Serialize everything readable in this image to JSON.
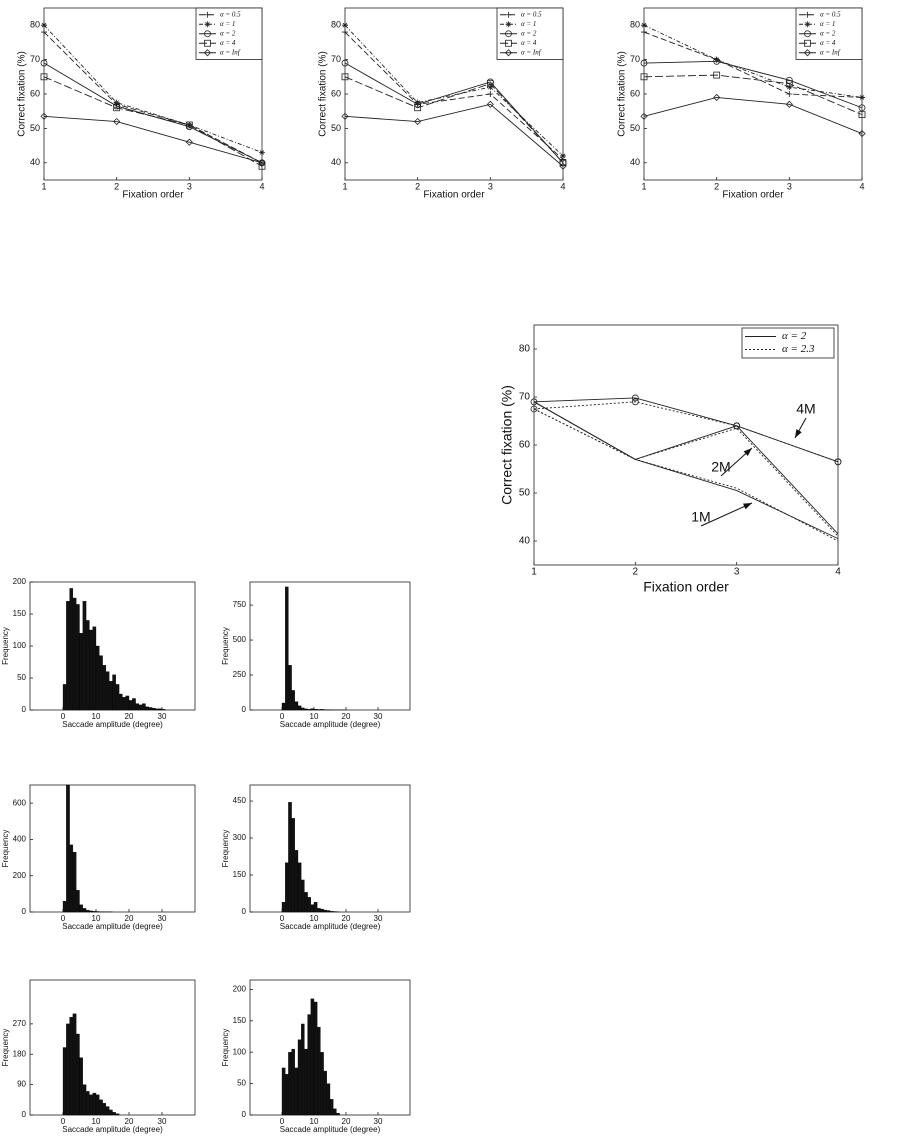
{
  "chart_data": [
    {
      "type": "line",
      "x": [
        1,
        2,
        3,
        4
      ],
      "xlim": [
        1,
        4
      ],
      "xticks": [
        1,
        2,
        3,
        4
      ],
      "ylim": [
        35,
        85
      ],
      "yticks": [
        40,
        50,
        60,
        70,
        80
      ],
      "xlabel": "Fixation order",
      "ylabel": "Correct fixation (%)",
      "legend": "upper right",
      "series": [
        {
          "name": "α = 0.5",
          "color": "#222",
          "dash": "6 3",
          "marker": "plus",
          "values": [
            78,
            57,
            51,
            40
          ]
        },
        {
          "name": "α = 1",
          "color": "#222",
          "dash": "4 2 1 2",
          "marker": "star",
          "values": [
            80,
            57.5,
            51,
            43
          ]
        },
        {
          "name": "α = 2",
          "color": "#222",
          "dash": "none",
          "marker": "circle",
          "values": [
            69,
            56.5,
            50.5,
            40
          ]
        },
        {
          "name": "α = 4",
          "color": "#222",
          "dash": "8 3",
          "marker": "square",
          "values": [
            65,
            56,
            51,
            39
          ]
        },
        {
          "name": "α = Inf",
          "color": "#222",
          "dash": "none",
          "marker": "diamond",
          "values": [
            53.5,
            52,
            46,
            40
          ]
        }
      ]
    },
    {
      "type": "line",
      "x": [
        1,
        2,
        3,
        4
      ],
      "xlim": [
        1,
        4
      ],
      "xticks": [
        1,
        2,
        3,
        4
      ],
      "ylim": [
        35,
        85
      ],
      "yticks": [
        40,
        50,
        60,
        70,
        80
      ],
      "xlabel": "Fixation order",
      "ylabel": "Correct fixation (%)",
      "legend": "upper right",
      "series": [
        {
          "name": "α = 0.5",
          "color": "#222",
          "dash": "6 3",
          "marker": "plus",
          "values": [
            78,
            57,
            60,
            41
          ]
        },
        {
          "name": "α = 1",
          "color": "#222",
          "dash": "4 2 1 2",
          "marker": "star",
          "values": [
            80,
            57.5,
            62,
            42
          ]
        },
        {
          "name": "α = 2",
          "color": "#222",
          "dash": "none",
          "marker": "circle",
          "values": [
            69,
            57,
            63.5,
            40
          ]
        },
        {
          "name": "α = 4",
          "color": "#222",
          "dash": "8 3",
          "marker": "square",
          "values": [
            65,
            56,
            63,
            40
          ]
        },
        {
          "name": "α = Inf",
          "color": "#222",
          "dash": "none",
          "marker": "diamond",
          "values": [
            53.5,
            52,
            57,
            39
          ]
        }
      ]
    },
    {
      "type": "line",
      "x": [
        1,
        2,
        3,
        4
      ],
      "xlim": [
        1,
        4
      ],
      "xticks": [
        1,
        2,
        3,
        4
      ],
      "ylim": [
        35,
        85
      ],
      "yticks": [
        40,
        50,
        60,
        70,
        80
      ],
      "xlabel": "Fixation order",
      "ylabel": "Correct fixation (%)",
      "legend": "upper right",
      "series": [
        {
          "name": "α = 0.5",
          "color": "#222",
          "dash": "6 3",
          "marker": "plus",
          "values": [
            78,
            70,
            60,
            59
          ]
        },
        {
          "name": "α = 1",
          "color": "#222",
          "dash": "4 2 1 2",
          "marker": "star",
          "values": [
            80,
            70,
            62,
            59
          ]
        },
        {
          "name": "α = 2",
          "color": "#222",
          "dash": "none",
          "marker": "circle",
          "values": [
            69,
            69.5,
            64,
            56
          ]
        },
        {
          "name": "α = 4",
          "color": "#222",
          "dash": "8 3",
          "marker": "square",
          "values": [
            65,
            65.5,
            63,
            54
          ]
        },
        {
          "name": "α = Inf",
          "color": "#222",
          "dash": "none",
          "marker": "diamond",
          "values": [
            53.5,
            59,
            57,
            48.5
          ]
        }
      ]
    },
    {
      "type": "line",
      "x": [
        1,
        2,
        3,
        4
      ],
      "xlim": [
        1,
        4
      ],
      "xticks": [
        1,
        2,
        3,
        4
      ],
      "ylim": [
        35,
        85
      ],
      "yticks": [
        40,
        50,
        60,
        70,
        80
      ],
      "xlabel": "Fixation order",
      "ylabel": "Correct fixation (%)",
      "legend": "upper right",
      "annotations": [
        "4M",
        "2M",
        "1M"
      ],
      "series": [
        {
          "name": "α = 2",
          "color": "#222",
          "dash": "none",
          "marker": "circle",
          "lines": [
            [
              69,
              69.8,
              64,
              56.5
            ],
            [
              69,
              57,
              64,
              41.5
            ],
            [
              69,
              57,
              50.5,
              40.5
            ]
          ]
        },
        {
          "name": "α = 2.3",
          "color": "#222",
          "dash": "2 2",
          "marker": "circle",
          "lines": [
            [
              67.5,
              69,
              64,
              56.5
            ],
            [
              67.5,
              57,
              63.5,
              41
            ],
            [
              67.5,
              57,
              51,
              40
            ]
          ]
        }
      ]
    },
    {
      "type": "histogram",
      "color": "#111",
      "xlim": [
        -10,
        40
      ],
      "xticks": [
        0,
        10,
        20,
        30
      ],
      "ylim": [
        0,
        200
      ],
      "yticks": [
        0,
        50,
        100,
        150,
        200
      ],
      "xlabel": "Saccade amplitude (degree)",
      "ylabel": "Frequency",
      "bins": [
        0,
        1,
        2,
        3,
        4,
        5,
        6,
        7,
        8,
        9,
        10,
        11,
        12,
        13,
        14,
        15,
        16,
        17,
        18,
        19,
        20,
        21,
        22,
        23,
        24,
        25,
        26,
        27,
        28,
        29,
        30,
        31
      ],
      "counts": [
        40,
        170,
        190,
        175,
        165,
        120,
        170,
        140,
        125,
        130,
        100,
        85,
        70,
        60,
        45,
        55,
        40,
        25,
        20,
        22,
        15,
        18,
        10,
        8,
        10,
        5,
        4,
        3,
        2,
        2,
        1
      ]
    },
    {
      "type": "histogram",
      "color": "#111",
      "xlim": [
        -10,
        40
      ],
      "xticks": [
        0,
        10,
        20,
        30
      ],
      "ylim": [
        0,
        915
      ],
      "yticks": [
        0,
        250,
        500,
        750
      ],
      "xlabel": "Saccade amplitude (degree)",
      "ylabel": "Frequency",
      "bins": [
        0,
        1,
        2,
        3,
        4,
        5,
        6,
        7,
        8,
        9,
        10,
        11,
        12,
        13,
        14,
        15,
        16,
        17,
        18,
        19,
        20
      ],
      "counts": [
        50,
        880,
        320,
        140,
        60,
        30,
        15,
        8,
        5,
        10,
        6,
        4,
        5,
        3,
        2,
        2,
        1,
        1,
        1,
        1
      ]
    },
    {
      "type": "histogram",
      "color": "#111",
      "xlim": [
        -10,
        40
      ],
      "xticks": [
        0,
        10,
        20,
        30
      ],
      "ylim": [
        0,
        700
      ],
      "yticks": [
        0,
        200,
        400,
        600
      ],
      "xlabel": "Saccade amplitude (degree)",
      "ylabel": "Frequency",
      "bins": [
        0,
        1,
        2,
        3,
        4,
        5,
        6,
        7,
        8,
        9,
        10,
        11,
        12,
        13,
        14,
        15
      ],
      "counts": [
        60,
        700,
        370,
        330,
        120,
        40,
        20,
        10,
        6,
        4,
        3,
        2,
        2,
        1,
        1
      ]
    },
    {
      "type": "histogram",
      "color": "#111",
      "xlim": [
        -10,
        40
      ],
      "xticks": [
        0,
        10,
        20,
        30
      ],
      "ylim": [
        0,
        515
      ],
      "yticks": [
        0,
        150,
        300,
        450
      ],
      "xlabel": "Saccade amplitude (degree)",
      "ylabel": "Frequency",
      "bins": [
        0,
        1,
        2,
        3,
        4,
        5,
        6,
        7,
        8,
        9,
        10,
        11,
        12,
        13,
        14,
        15,
        16,
        17,
        18
      ],
      "counts": [
        40,
        200,
        445,
        380,
        250,
        200,
        130,
        80,
        60,
        30,
        40,
        15,
        12,
        8,
        6,
        3,
        2,
        1
      ]
    },
    {
      "type": "histogram",
      "color": "#111",
      "xlim": [
        -10,
        40
      ],
      "xticks": [
        0,
        10,
        20,
        30
      ],
      "ylim": [
        0,
        400
      ],
      "yticks": [
        0,
        90,
        180,
        270
      ],
      "xlabel": "Saccade amplitude (degree)",
      "ylabel": "Frequency",
      "bins": [
        0,
        1,
        2,
        3,
        4,
        5,
        6,
        7,
        8,
        9,
        10,
        11,
        12,
        13,
        14,
        15,
        16,
        17
      ],
      "counts": [
        200,
        270,
        290,
        300,
        240,
        170,
        90,
        70,
        60,
        65,
        60,
        45,
        35,
        25,
        15,
        8,
        4
      ]
    },
    {
      "type": "histogram",
      "color": "#111",
      "xlim": [
        -10,
        40
      ],
      "xticks": [
        0,
        10,
        20,
        30
      ],
      "ylim": [
        0,
        215
      ],
      "yticks": [
        0,
        50,
        100,
        150,
        200
      ],
      "xlabel": "Saccade amplitude (degree)",
      "ylabel": "Frequency",
      "bins": [
        0,
        1,
        2,
        3,
        4,
        5,
        6,
        7,
        8,
        9,
        10,
        11,
        12,
        13,
        14,
        15,
        16,
        17,
        18
      ],
      "counts": [
        75,
        65,
        100,
        105,
        75,
        120,
        145,
        105,
        160,
        185,
        180,
        140,
        100,
        70,
        50,
        25,
        10,
        3
      ]
    }
  ]
}
